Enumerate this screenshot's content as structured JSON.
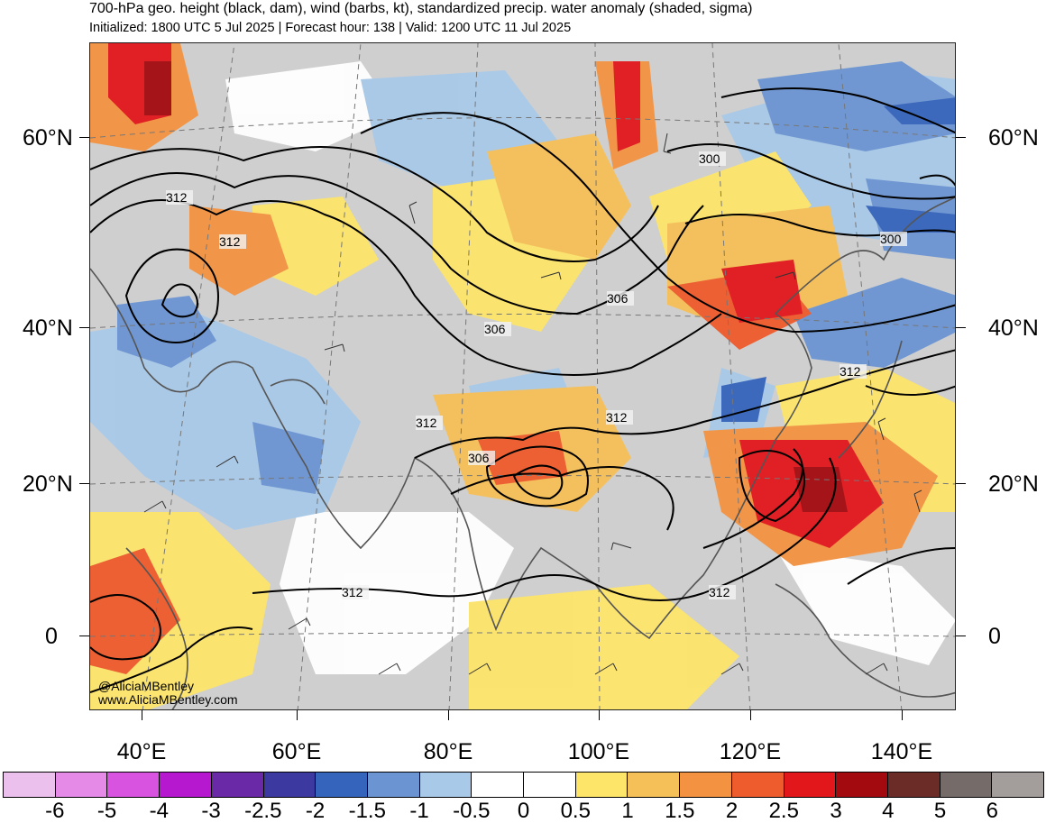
{
  "header": {
    "title": "700-hPa geo. height (black, dam), wind (barbs, kt), standardized precip. water anomaly (shaded, sigma)",
    "subtitle": "Initialized: 1800 UTC 5 Jul 2025 | Forecast hour: 138 | Valid: 1200 UTC 11 Jul 2025"
  },
  "map": {
    "lat_labels": [
      "60°N",
      "40°N",
      "20°N",
      "0"
    ],
    "lon_labels": [
      "40°E",
      "60°E",
      "80°E",
      "100°E",
      "120°E",
      "140°E"
    ],
    "contour_labels": [
      "312",
      "312",
      "306",
      "306",
      "300",
      "300",
      "312",
      "312",
      "312",
      "306",
      "312",
      "312"
    ],
    "credit": [
      "@AliciaMBentley",
      "www.AliciaMBentley.com"
    ]
  },
  "legend": {
    "labels": [
      "-6",
      "-5",
      "-4",
      "-3",
      "-2.5",
      "-2",
      "-1.5",
      "-1",
      "-0.5",
      "0",
      "0.5",
      "1",
      "1.5",
      "2",
      "2.5",
      "3",
      "4",
      "5",
      "6"
    ],
    "colors": [
      "#ecc0ec",
      "#e68ae8",
      "#d853e0",
      "#b518cf",
      "#6a2aa8",
      "#3c3aa0",
      "#3564bc",
      "#6b95d2",
      "#a9c9e8",
      "#ffffff",
      "#ffffff",
      "#fde56a",
      "#f6c059",
      "#f39342",
      "#ee5b2c",
      "#e1171b",
      "#a30a10",
      "#6b2c28",
      "#756b69",
      "#a39d9c"
    ]
  }
}
